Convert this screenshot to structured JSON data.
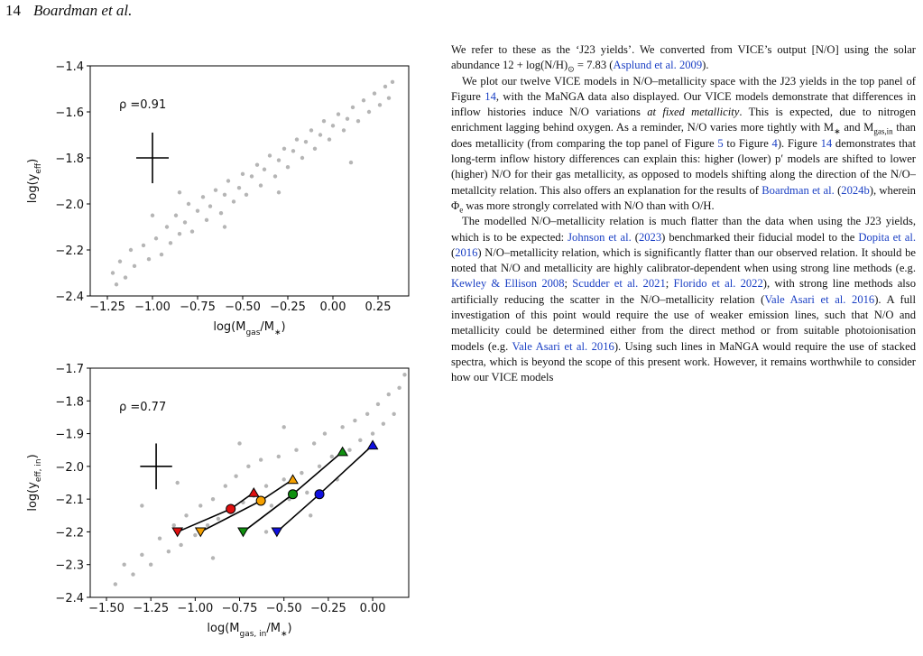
{
  "header": {
    "page": "14",
    "authors": "Boardman et al."
  },
  "chart_data": [
    {
      "type": "scatter",
      "xlabel": [
        "log(M",
        {
          "sub": "gas"
        },
        "/M",
        {
          "sub": "∗"
        },
        ")"
      ],
      "ylabel": [
        "log(y",
        {
          "sub": "eff"
        },
        ")"
      ],
      "annotation": "ρ =0.91",
      "xlim": [
        -1.345,
        0.42
      ],
      "ylim": [
        -2.4,
        -1.4
      ],
      "xticks": [
        {
          "value": -1.25,
          "label": "−1.25"
        },
        {
          "value": -1.0,
          "label": "−1.00"
        },
        {
          "value": -0.75,
          "label": "−0.75"
        },
        {
          "value": -0.5,
          "label": "−0.50"
        },
        {
          "value": -0.25,
          "label": "−0.25"
        },
        {
          "value": 0,
          "label": "0.00"
        },
        {
          "value": 0.25,
          "label": "0.25"
        }
      ],
      "yticks": [
        {
          "value": -2.4,
          "label": "−2.4"
        },
        {
          "value": -2.2,
          "label": "−2.2"
        },
        {
          "value": -2.0,
          "label": "−2.0"
        },
        {
          "value": -1.8,
          "label": "−1.8"
        },
        {
          "value": -1.6,
          "label": "−1.6"
        },
        {
          "value": -1.4,
          "label": "−1.4"
        }
      ],
      "color": "#a8a8a8",
      "x": [
        -1.22,
        -1.18,
        -1.15,
        -1.12,
        -1.1,
        -1.05,
        -1.02,
        -0.98,
        -0.95,
        -0.92,
        -0.9,
        -0.87,
        -0.85,
        -0.82,
        -0.8,
        -0.78,
        -0.75,
        -0.72,
        -0.7,
        -0.68,
        -0.65,
        -0.62,
        -0.6,
        -0.58,
        -0.55,
        -0.52,
        -0.5,
        -0.48,
        -0.45,
        -0.42,
        -0.4,
        -0.38,
        -0.35,
        -0.32,
        -0.3,
        -0.27,
        -0.25,
        -0.22,
        -0.2,
        -0.17,
        -0.15,
        -0.12,
        -0.1,
        -0.07,
        -0.05,
        -0.02,
        0.0,
        0.03,
        0.06,
        0.08,
        0.11,
        0.14,
        0.17,
        0.2,
        0.23,
        0.26,
        0.29,
        0.31,
        0.33,
        -1.0,
        -0.6,
        -0.3,
        -0.85,
        0.1,
        -1.2
      ],
      "values": [
        -2.3,
        -2.25,
        -2.32,
        -2.2,
        -2.27,
        -2.18,
        -2.24,
        -2.15,
        -2.22,
        -2.1,
        -2.17,
        -2.05,
        -2.13,
        -2.08,
        -2.0,
        -2.12,
        -2.03,
        -1.97,
        -2.07,
        -2.01,
        -1.94,
        -2.04,
        -1.96,
        -1.9,
        -1.99,
        -1.93,
        -1.87,
        -1.96,
        -1.88,
        -1.83,
        -1.92,
        -1.85,
        -1.79,
        -1.88,
        -1.81,
        -1.76,
        -1.84,
        -1.77,
        -1.72,
        -1.8,
        -1.73,
        -1.68,
        -1.76,
        -1.7,
        -1.64,
        -1.72,
        -1.66,
        -1.61,
        -1.68,
        -1.63,
        -1.58,
        -1.64,
        -1.55,
        -1.6,
        -1.52,
        -1.57,
        -1.49,
        -1.54,
        -1.47,
        -2.05,
        -2.1,
        -1.95,
        -1.95,
        -1.82,
        -2.35
      ],
      "error_cross": {
        "x": -1.0,
        "y": -1.8,
        "xerr": 0.09,
        "yerr": 0.11
      }
    },
    {
      "type": "scatter",
      "xlabel": [
        "log(M",
        {
          "sub": "gas, in"
        },
        "/M",
        {
          "sub": "∗"
        },
        ")"
      ],
      "ylabel": [
        "log(y",
        {
          "sub": "eff, in"
        },
        ")"
      ],
      "annotation": "ρ =0.77",
      "xlim": [
        -1.5915,
        0.203
      ],
      "ylim": [
        -2.4,
        -1.7
      ],
      "xticks": [
        {
          "value": -1.5,
          "label": "−1.50"
        },
        {
          "value": -1.25,
          "label": "−1.25"
        },
        {
          "value": -1.0,
          "label": "−1.00"
        },
        {
          "value": -0.75,
          "label": "−0.75"
        },
        {
          "value": -0.5,
          "label": "−0.50"
        },
        {
          "value": -0.25,
          "label": "−0.25"
        },
        {
          "value": 0,
          "label": "0.00"
        }
      ],
      "yticks": [
        {
          "value": -2.4,
          "label": "−2.4"
        },
        {
          "value": -2.3,
          "label": "−2.3"
        },
        {
          "value": -2.2,
          "label": "−2.2"
        },
        {
          "value": -2.1,
          "label": "−2.1"
        },
        {
          "value": -2.0,
          "label": "−2.0"
        },
        {
          "value": -1.9,
          "label": "−1.9"
        },
        {
          "value": -1.8,
          "label": "−1.8"
        },
        {
          "value": -1.7,
          "label": "−1.7"
        }
      ],
      "color": "#a8a8a8",
      "x": [
        -1.45,
        -1.4,
        -1.35,
        -1.3,
        -1.25,
        -1.2,
        -1.15,
        -1.12,
        -1.08,
        -1.05,
        -1.0,
        -0.97,
        -0.93,
        -0.9,
        -0.87,
        -0.83,
        -0.8,
        -0.77,
        -0.73,
        -0.7,
        -0.67,
        -0.63,
        -0.6,
        -0.57,
        -0.53,
        -0.5,
        -0.47,
        -0.43,
        -0.4,
        -0.37,
        -0.33,
        -0.3,
        -0.27,
        -0.23,
        -0.2,
        -0.17,
        -0.13,
        -0.1,
        -0.07,
        -0.03,
        0.0,
        0.03,
        0.06,
        0.09,
        0.12,
        0.15,
        0.18,
        -1.1,
        -0.9,
        -0.6,
        -0.35,
        -0.75,
        -0.5,
        -1.3
      ],
      "values": [
        -2.36,
        -2.3,
        -2.33,
        -2.27,
        -2.3,
        -2.22,
        -2.26,
        -2.18,
        -2.24,
        -2.15,
        -2.21,
        -2.12,
        -2.18,
        -2.1,
        -2.16,
        -2.06,
        -2.14,
        -2.03,
        -2.11,
        -2.0,
        -2.09,
        -1.98,
        -2.06,
        -2.12,
        -1.97,
        -2.04,
        -2.1,
        -1.95,
        -2.02,
        -2.08,
        -1.93,
        -2.0,
        -1.9,
        -1.97,
        -2.04,
        -1.88,
        -1.95,
        -1.86,
        -1.92,
        -1.84,
        -1.9,
        -1.81,
        -1.87,
        -1.78,
        -1.84,
        -1.76,
        -1.72,
        -2.05,
        -2.28,
        -2.2,
        -2.15,
        -1.93,
        -1.88,
        -2.12
      ],
      "error_cross": {
        "x": -1.22,
        "y": -2.0,
        "xerr": 0.09,
        "yerr": 0.07
      },
      "markers": [
        "triangle-down",
        "circle",
        "triangle-up"
      ],
      "series": [
        {
          "color": "#e01010",
          "x": [
            -1.1,
            -0.8,
            -0.67
          ],
          "values": [
            -2.2,
            -2.13,
            -2.08
          ]
        },
        {
          "color": "#f5a000",
          "x": [
            -0.97,
            -0.63,
            -0.45
          ],
          "values": [
            -2.2,
            -2.105,
            -2.04
          ]
        },
        {
          "color": "#109010",
          "x": [
            -0.73,
            -0.45,
            -0.17
          ],
          "values": [
            -2.2,
            -2.085,
            -1.955
          ]
        },
        {
          "color": "#1010e0",
          "x": [
            -0.54,
            -0.3,
            0.0
          ],
          "values": [
            -2.2,
            -2.085,
            -1.935
          ]
        }
      ]
    }
  ],
  "text": [
    [
      "We refer to these as the ‘J23 yields’. We converted from VICE’s output [N/O] using the solar abundance 12 + log(N/H)",
      {
        "sub": "⊙"
      },
      " = 7.83 (",
      {
        "link": "Asplund et al. 2009"
      },
      ")."
    ],
    [
      "We plot our twelve VICE models in N/O–metallicity space with the J23 yields in the top panel of Figure ",
      {
        "link": "14"
      },
      ", with the MaNGA data also displayed. Our VICE models demonstrate that differences in inflow histories induce N/O variations ",
      {
        "i": "at fixed metallicity"
      },
      ". This is expected, due to nitrogen enrichment lagging behind oxygen. As a reminder, N/O varies more tightly with M",
      {
        "sub": "∗"
      },
      " and M",
      {
        "sub": "gas,in"
      },
      " than does metallicity (from comparing the top panel of Figure ",
      {
        "link": "5"
      },
      " to Figure ",
      {
        "link": "4"
      },
      "). Figure ",
      {
        "link": "14"
      },
      " demonstrates that long-term inflow history differences can explain this: higher (lower) p′ models are shifted to lower (higher) N/O for their gas metallicity, as opposed to models shifting along the direction of the N/O–metallcity relation. This also offers an explanation for the results of ",
      {
        "link": "Boardman et al."
      },
      " (",
      {
        "link": "2024b"
      },
      "), wherein Φ",
      {
        "sub": "e"
      },
      " was more strongly correlated with N/O than with O/H."
    ],
    [
      "The modelled N/O–metallicity relation is much flatter than the data when using the J23 yields, which is to be expected: ",
      {
        "link": "Johnson et al."
      },
      " (",
      {
        "link": "2023"
      },
      ") benchmarked their fiducial model to the ",
      {
        "link": "Dopita et al."
      },
      " (",
      {
        "link": "2016"
      },
      ") N/O–metallicity relation, which is significantly flatter than our observed relation. It should be noted that N/O and metallicity are highly calibrator-dependent when using strong line methods (e.g. ",
      {
        "link": "Kewley & Ellison 2008"
      },
      "; ",
      {
        "link": "Scudder et al. 2021"
      },
      "; ",
      {
        "link": "Florido et al. 2022"
      },
      "), with strong line methods also artificially reducing the scatter in the N/O–metallicity relation (",
      {
        "link": "Vale Asari et al. 2016"
      },
      "). A full investigation of this point would require the use of weaker emission lines, such that N/O and metallicity could be determined either from the direct method or from suitable photoionisation models (e.g. ",
      {
        "link": "Vale Asari et al. 2016"
      },
      "). Using such lines in MaNGA would require the use of stacked spectra, which is beyond the scope of this present work. However, it remains worthwhile to consider how our VICE models"
    ]
  ]
}
